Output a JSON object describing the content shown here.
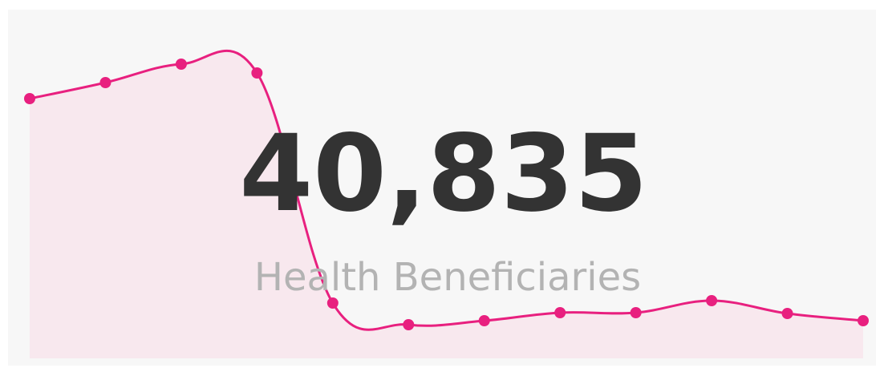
{
  "chart_data": {
    "type": "area",
    "kpi": "40,835",
    "label": "Health Beneficiaries",
    "values": [
      324,
      344,
      367,
      356,
      69,
      42,
      47,
      57,
      57,
      72,
      56,
      47
    ],
    "ylim": [
      0,
      400
    ],
    "color": "#e8207f",
    "fill": "#f8e8ee"
  }
}
